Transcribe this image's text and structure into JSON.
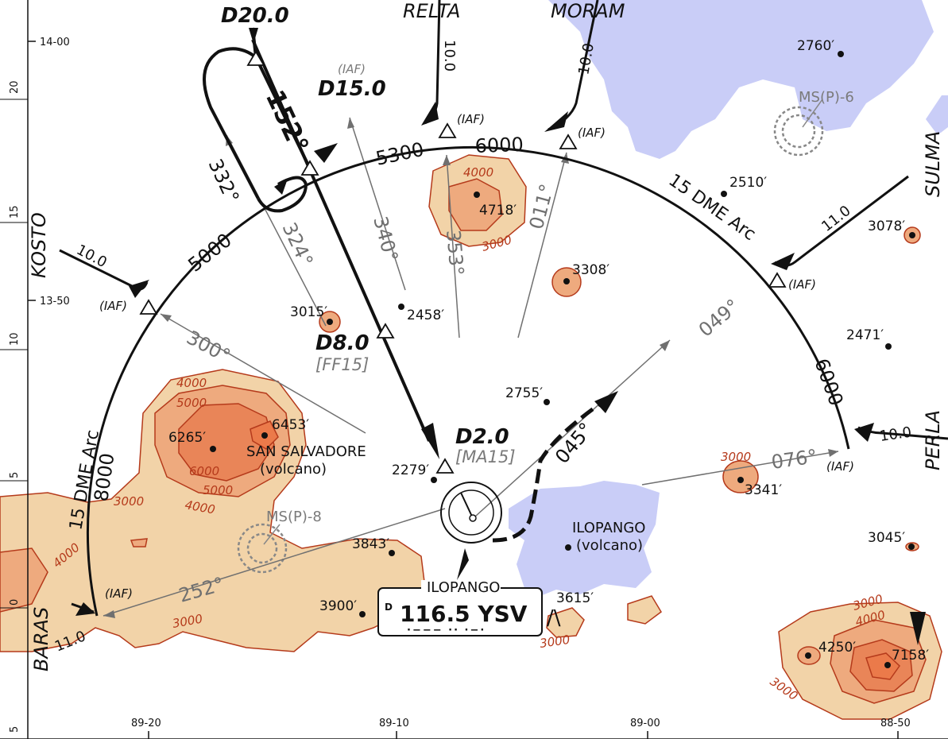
{
  "colors": {
    "water": "#c9cdf7",
    "terrain1": "#f2d3a8",
    "terrain2": "#eeaa7e",
    "terrain3": "#e98558",
    "contour": "#b53a1b",
    "track": "#111111",
    "radial": "#707070"
  },
  "waypoints": {
    "relta": "RELTA",
    "moram": "MORAM",
    "kosto": "KOSTO",
    "sulma": "SULMA",
    "perla": "PERLA",
    "baras": "BARAS"
  },
  "fixes": {
    "d20": "D20.0",
    "d15": "D15.0",
    "d8": "D8.0",
    "ff15": "[FF15]",
    "d2": "D2.0",
    "ma15": "[MA15]"
  },
  "iaf_label": "(IAF)",
  "courses": {
    "c152": "152°",
    "c332": "332°",
    "c324": "324°",
    "c340": "340°",
    "c353": "353°",
    "c011": "011°",
    "c049": "049°",
    "c045": "045°",
    "c076": "076°",
    "c300": "300°",
    "c252": "252°"
  },
  "altitudes": {
    "a5300": "5300",
    "a6000_top": "6000",
    "a5000": "5000",
    "a6000_right": "6000",
    "a8000": "8000"
  },
  "distances": {
    "relta": "10.0",
    "moram": "10.0",
    "kosto": "10.0",
    "sulma": "11.0",
    "perla": "10.0",
    "baras": "11.0"
  },
  "arc_labels": {
    "right": "15 DME Arc",
    "left": "15 DME Arc"
  },
  "msp": {
    "six": "MS(P)-6",
    "eight": "MS(P)-8"
  },
  "elevations": {
    "e2760": "2760′",
    "e2510": "2510′",
    "e3078": "3078′",
    "e4718": "4718′",
    "e3308": "3308′",
    "e3015": "3015′",
    "e2458": "2458′",
    "e2471": "2471′",
    "e2755": "2755′",
    "e6265": "6265′",
    "e6453": "6453′",
    "e3341": "3341′",
    "e2279": "2279′",
    "e3843": "3843′",
    "e3045": "3045′",
    "e3900": "3900′",
    "e3615": "3615′",
    "e4250": "4250′",
    "e7158": "7158′"
  },
  "places": {
    "san_salvadore": "SAN SALVADORE",
    "ilopango_volcano": "ILOPANGO",
    "volcano": "(volcano)"
  },
  "contours": {
    "c4000": "4000",
    "c3000": "3000",
    "c5000": "5000",
    "c6000": "6000"
  },
  "navaid": {
    "name": "ILOPANGO",
    "freq": "116.5 YSV",
    "d": "D",
    "morse": "·−−− ·· ·−·"
  },
  "lat_ticks": {
    "t1400": "14-00",
    "t1350": "13-50",
    "m20": "20",
    "m15": "15",
    "m10": "10",
    "m5": "5",
    "m0": "0",
    "m5b": "5"
  },
  "lon_ticks": {
    "t8920": "89-20",
    "t8910": "89-10",
    "t8900": "89-00",
    "t8850": "88-50"
  }
}
